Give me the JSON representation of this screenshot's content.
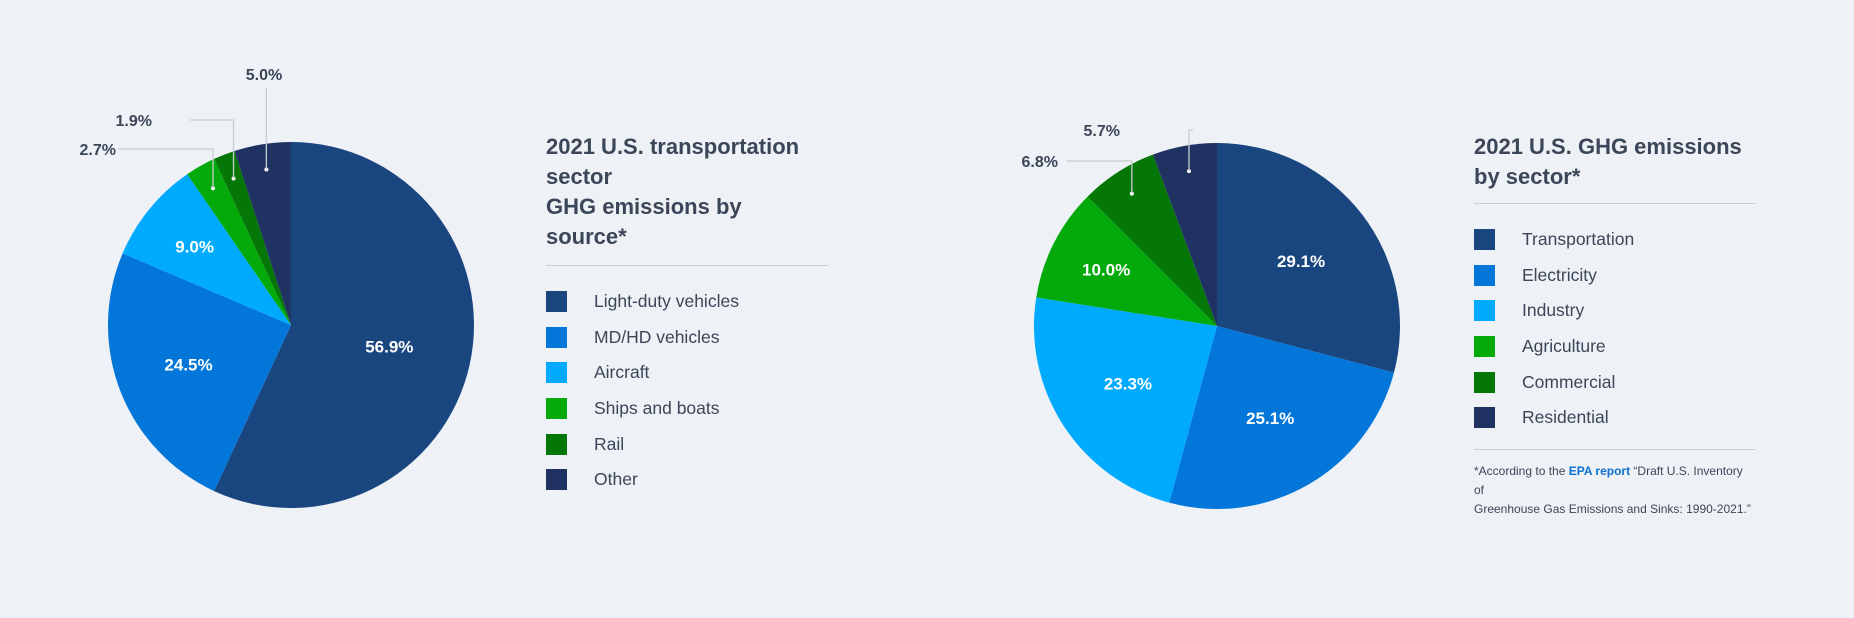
{
  "chart_data": [
    {
      "type": "pie",
      "title": "2021 U.S. transportation sector\nGHG emissions by source*",
      "unit": "%",
      "categories": [
        "Light-duty vehicles",
        "MD/HD vehicles",
        "Aircraft",
        "Ships and boats",
        "Rail",
        "Other"
      ],
      "values": [
        56.9,
        24.5,
        9.0,
        2.7,
        1.9,
        5.0
      ],
      "labels": [
        "56.9%",
        "24.5%",
        "9.0%",
        "2.7%",
        "1.9%",
        "5.0%"
      ],
      "colors": [
        "#1a4680",
        "#0276d9",
        "#00aaff",
        "#04a90a",
        "#047706",
        "#1f3262"
      ],
      "start": "12 o'clock, clockwise",
      "callout_slices": [
        3,
        4,
        5
      ]
    },
    {
      "type": "pie",
      "title": "2021 U.S. GHG emissions\nby sector*",
      "unit": "%",
      "categories": [
        "Transportation",
        "Electricity",
        "Industry",
        "Agriculture",
        "Commercial",
        "Residential"
      ],
      "values": [
        29.1,
        25.1,
        23.3,
        10.0,
        6.8,
        5.7
      ],
      "labels": [
        "29.1%",
        "25.1%",
        "23.3%",
        "10.0%",
        "6.8%",
        "5.7%"
      ],
      "colors": [
        "#1a4680",
        "#0276d9",
        "#00aaff",
        "#04a90a",
        "#047706",
        "#1f3262"
      ],
      "start": "12 o'clock, clockwise",
      "callout_slices": [
        4,
        5
      ]
    }
  ],
  "footnote": {
    "prefix": "*According to the ",
    "link_text": "EPA report",
    "line1_rest": " “Draft U.S. Inventory of",
    "line2": "Greenhouse Gas Emissions and Sinks: 1990-2021.”"
  }
}
